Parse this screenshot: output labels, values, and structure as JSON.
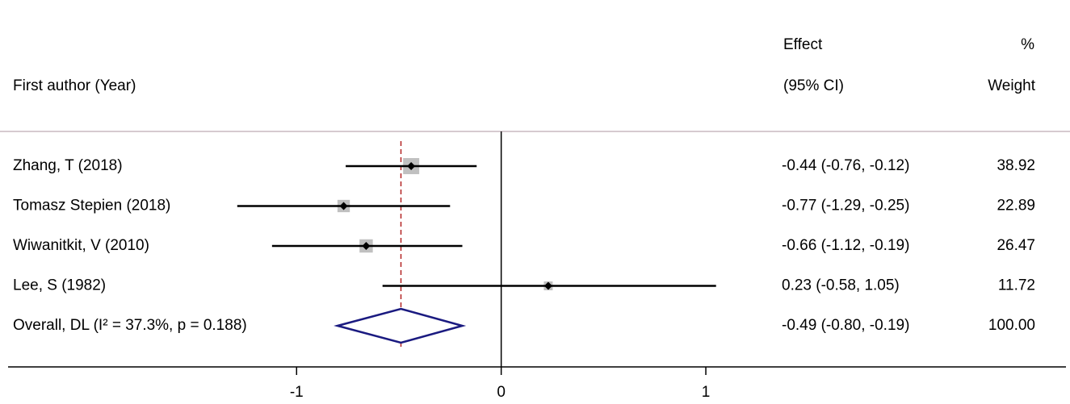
{
  "chart_data": {
    "type": "forest",
    "headers": {
      "effect": "Effect",
      "pct": "%",
      "study": "First author (Year)",
      "ci": "(95% CI)",
      "weight": "Weight"
    },
    "studies": [
      {
        "name": "Zhang, T (2018)",
        "estimate": -0.44,
        "lower": -0.76,
        "upper": -0.12,
        "effect_label": "-0.44 (-0.76, -0.12)",
        "weight": 38.92
      },
      {
        "name": "Tomasz Stepien (2018)",
        "estimate": -0.77,
        "lower": -1.29,
        "upper": -0.25,
        "effect_label": "-0.77 (-1.29, -0.25)",
        "weight": 22.89
      },
      {
        "name": "Wiwanitkit, V (2010)",
        "estimate": -0.66,
        "lower": -1.12,
        "upper": -0.19,
        "effect_label": "-0.66 (-1.12, -0.19)",
        "weight": 26.47
      },
      {
        "name": "Lee, S (1982)",
        "estimate": 0.23,
        "lower": -0.58,
        "upper": 1.05,
        "effect_label": "0.23 (-0.58, 1.05)",
        "weight": 11.72
      }
    ],
    "overall": {
      "name": "Overall, DL (I² = 37.3%, p = 0.188)",
      "estimate": -0.49,
      "lower": -0.8,
      "upper": -0.19,
      "effect_label": "-0.49 (-0.80, -0.19)",
      "weight": 100,
      "weight_label": "100.00"
    },
    "xlim": [
      -2.41,
      2.76
    ],
    "xticks": [
      -1,
      0,
      1
    ],
    "box_color": "#c0c0c0",
    "diamond_color": "#1a1a80",
    "overall_line_color": "#b22222"
  }
}
